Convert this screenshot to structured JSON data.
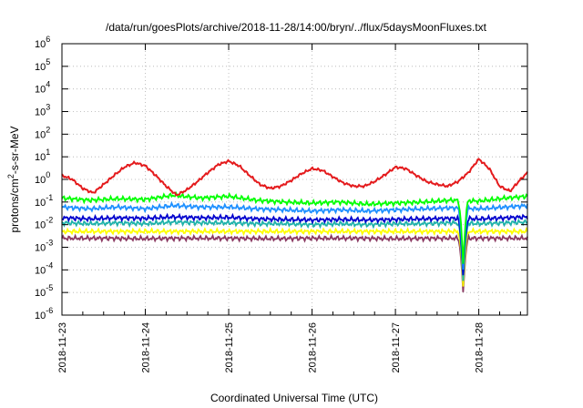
{
  "chart_data": {
    "type": "line",
    "title": "/data/run/goesPlots/archive/2018-11-28/14:00/bryn/../flux/5daysMoonFluxes.txt",
    "xlabel": "Coordinated Universal Time (UTC)",
    "ylabel": "protons/cm²-s-sr-MeV",
    "ylabel_parts": {
      "pre": "protons/cm",
      "sup": "2",
      "post": "-s-sr-MeV"
    },
    "y_scale": "log",
    "ylim": [
      "1e-6",
      "1e6"
    ],
    "yticks": [
      {
        "base": "10",
        "exp": "6",
        "value": 1000000.0
      },
      {
        "base": "10",
        "exp": "5",
        "value": 100000.0
      },
      {
        "base": "10",
        "exp": "4",
        "value": 10000.0
      },
      {
        "base": "10",
        "exp": "3",
        "value": 1000.0
      },
      {
        "base": "10",
        "exp": "2",
        "value": 100.0
      },
      {
        "base": "10",
        "exp": "1",
        "value": 10.0
      },
      {
        "base": "10",
        "exp": "0",
        "value": 1.0
      },
      {
        "base": "10",
        "exp": "-1",
        "value": 0.1
      },
      {
        "base": "10",
        "exp": "-2",
        "value": 0.01
      },
      {
        "base": "10",
        "exp": "-3",
        "value": 0.001
      },
      {
        "base": "10",
        "exp": "-4",
        "value": 0.0001
      },
      {
        "base": "10",
        "exp": "-5",
        "value": 1e-05
      },
      {
        "base": "10",
        "exp": "-6",
        "value": 1e-06
      }
    ],
    "xlim": [
      "2018-11-23",
      "2018-11-28 14:00"
    ],
    "xticks": [
      "2018-11-23",
      "2018-11-24",
      "2018-11-25",
      "2018-11-26",
      "2018-11-27",
      "2018-11-28"
    ],
    "grid": true,
    "series": [
      {
        "color": "#e41a1c",
        "x": [
          "2018-11-23 00:00",
          "2018-11-23 03:00",
          "2018-11-23 06:00",
          "2018-11-23 09:00",
          "2018-11-23 12:00",
          "2018-11-23 15:00",
          "2018-11-23 18:00",
          "2018-11-23 21:00",
          "2018-11-24 00:00",
          "2018-11-24 03:00",
          "2018-11-24 06:00",
          "2018-11-24 09:00",
          "2018-11-24 12:00",
          "2018-11-24 15:00",
          "2018-11-24 18:00",
          "2018-11-24 21:00",
          "2018-11-25 00:00",
          "2018-11-25 03:00",
          "2018-11-25 06:00",
          "2018-11-25 09:00",
          "2018-11-25 12:00",
          "2018-11-25 15:00",
          "2018-11-25 18:00",
          "2018-11-25 21:00",
          "2018-11-26 00:00",
          "2018-11-26 03:00",
          "2018-11-26 06:00",
          "2018-11-26 09:00",
          "2018-11-26 12:00",
          "2018-11-26 15:00",
          "2018-11-26 18:00",
          "2018-11-26 21:00",
          "2018-11-27 00:00",
          "2018-11-27 03:00",
          "2018-11-27 06:00",
          "2018-11-27 09:00",
          "2018-11-27 12:00",
          "2018-11-27 15:00",
          "2018-11-27 18:00",
          "2018-11-27 21:00",
          "2018-11-28 00:00",
          "2018-11-28 03:00",
          "2018-11-28 06:00",
          "2018-11-28 09:00",
          "2018-11-28 12:00",
          "2018-11-28 14:00"
        ],
        "y": [
          1.5,
          1.0,
          0.4,
          0.25,
          0.6,
          1.5,
          3.5,
          5.5,
          4.0,
          1.5,
          0.5,
          0.2,
          0.35,
          0.8,
          2.0,
          4.5,
          6.5,
          4.0,
          1.5,
          0.6,
          0.4,
          0.5,
          0.9,
          1.8,
          3.0,
          2.5,
          1.3,
          0.7,
          0.5,
          0.5,
          0.8,
          1.6,
          3.5,
          3.0,
          1.5,
          0.8,
          0.6,
          0.5,
          0.8,
          2.0,
          8.0,
          3.0,
          0.5,
          0.3,
          1.0,
          2.0
        ]
      },
      {
        "color": "#00ff00",
        "x": [
          "2018-11-23 00:00",
          "2018-11-23 08:00",
          "2018-11-23 16:00",
          "2018-11-24 00:00",
          "2018-11-24 08:00",
          "2018-11-24 16:00",
          "2018-11-25 00:00",
          "2018-11-25 08:00",
          "2018-11-25 16:00",
          "2018-11-26 00:00",
          "2018-11-26 08:00",
          "2018-11-26 16:00",
          "2018-11-27 00:00",
          "2018-11-27 08:00",
          "2018-11-27 16:00",
          "2018-11-28 00:00",
          "2018-11-28 08:00",
          "2018-11-28 14:00"
        ],
        "y": [
          0.15,
          0.12,
          0.14,
          0.13,
          0.2,
          0.15,
          0.18,
          0.12,
          0.1,
          0.09,
          0.1,
          0.08,
          0.09,
          0.1,
          0.12,
          0.11,
          0.15,
          0.18
        ]
      },
      {
        "color": "#1e90ff",
        "x": [
          "2018-11-23 00:00",
          "2018-11-23 08:00",
          "2018-11-23 16:00",
          "2018-11-24 00:00",
          "2018-11-24 08:00",
          "2018-11-24 16:00",
          "2018-11-25 00:00",
          "2018-11-25 08:00",
          "2018-11-25 16:00",
          "2018-11-26 00:00",
          "2018-11-26 08:00",
          "2018-11-26 16:00",
          "2018-11-27 00:00",
          "2018-11-27 08:00",
          "2018-11-27 16:00",
          "2018-11-28 00:00",
          "2018-11-28 08:00",
          "2018-11-28 14:00"
        ],
        "y": [
          0.06,
          0.05,
          0.06,
          0.05,
          0.07,
          0.06,
          0.06,
          0.05,
          0.045,
          0.04,
          0.045,
          0.04,
          0.045,
          0.05,
          0.055,
          0.05,
          0.06,
          0.07
        ]
      },
      {
        "color": "#0000cd",
        "x": [
          "2018-11-23 00:00",
          "2018-11-23 08:00",
          "2018-11-23 16:00",
          "2018-11-24 00:00",
          "2018-11-24 08:00",
          "2018-11-24 16:00",
          "2018-11-25 00:00",
          "2018-11-25 08:00",
          "2018-11-25 16:00",
          "2018-11-26 00:00",
          "2018-11-26 08:00",
          "2018-11-26 16:00",
          "2018-11-27 00:00",
          "2018-11-27 08:00",
          "2018-11-27 16:00",
          "2018-11-28 00:00",
          "2018-11-28 08:00",
          "2018-11-28 14:00"
        ],
        "y": [
          0.02,
          0.018,
          0.02,
          0.019,
          0.022,
          0.02,
          0.021,
          0.018,
          0.017,
          0.016,
          0.017,
          0.016,
          0.017,
          0.018,
          0.019,
          0.018,
          0.02,
          0.022
        ]
      },
      {
        "color": "#20b2aa",
        "x": [
          "2018-11-23 00:00",
          "2018-11-23 08:00",
          "2018-11-23 16:00",
          "2018-11-24 00:00",
          "2018-11-24 08:00",
          "2018-11-24 16:00",
          "2018-11-25 00:00",
          "2018-11-25 08:00",
          "2018-11-25 16:00",
          "2018-11-26 00:00",
          "2018-11-26 08:00",
          "2018-11-26 16:00",
          "2018-11-27 00:00",
          "2018-11-27 08:00",
          "2018-11-27 16:00",
          "2018-11-28 00:00",
          "2018-11-28 08:00",
          "2018-11-28 14:00"
        ],
        "y": [
          0.012,
          0.011,
          0.012,
          0.011,
          0.013,
          0.012,
          0.012,
          0.011,
          0.011,
          0.01,
          0.011,
          0.01,
          0.011,
          0.011,
          0.012,
          0.011,
          0.012,
          0.013
        ]
      },
      {
        "color": "#ffff00",
        "x": [
          "2018-11-23 00:00",
          "2018-11-23 12:00",
          "2018-11-24 00:00",
          "2018-11-24 12:00",
          "2018-11-25 00:00",
          "2018-11-25 12:00",
          "2018-11-26 00:00",
          "2018-11-26 12:00",
          "2018-11-27 00:00",
          "2018-11-27 12:00",
          "2018-11-28 00:00",
          "2018-11-28 14:00"
        ],
        "y": [
          0.005,
          0.005,
          0.005,
          0.005,
          0.005,
          0.005,
          0.005,
          0.005,
          0.005,
          0.005,
          0.005,
          0.005
        ]
      },
      {
        "color": "#8b3a62",
        "x": [
          "2018-11-23 00:00",
          "2018-11-23 12:00",
          "2018-11-24 00:00",
          "2018-11-24 12:00",
          "2018-11-25 00:00",
          "2018-11-25 12:00",
          "2018-11-26 00:00",
          "2018-11-26 12:00",
          "2018-11-27 00:00",
          "2018-11-27 12:00",
          "2018-11-28 00:00",
          "2018-11-28 14:00"
        ],
        "y": [
          0.0025,
          0.0025,
          0.0024,
          0.0025,
          0.0025,
          0.0024,
          0.0025,
          0.0025,
          0.0024,
          0.0025,
          0.0025,
          0.0025
        ]
      }
    ],
    "dropout": {
      "x": "2018-11-27 19:30",
      "y": 1e-05
    }
  }
}
